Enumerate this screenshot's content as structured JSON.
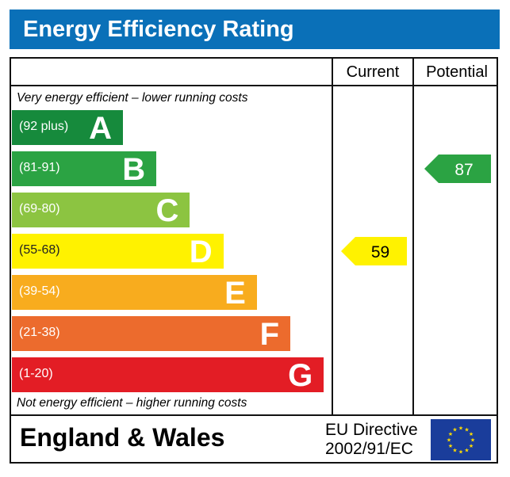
{
  "chart_data": {
    "type": "bar",
    "title": "Energy Efficiency Rating",
    "columns": [
      "Current",
      "Potential"
    ],
    "top_note": "Very energy efficient – lower running costs",
    "bottom_note": "Not energy efficient – higher running costs",
    "bands": [
      {
        "letter": "A",
        "range": "(92 plus)",
        "color": "#168a3c"
      },
      {
        "letter": "B",
        "range": "(81-91)",
        "color": "#2ba343"
      },
      {
        "letter": "C",
        "range": "(69-80)",
        "color": "#8cc441"
      },
      {
        "letter": "D",
        "range": "(55-68)",
        "color": "#fff200"
      },
      {
        "letter": "E",
        "range": "(39-54)",
        "color": "#f8ac1e"
      },
      {
        "letter": "F",
        "range": "(21-38)",
        "color": "#ec6b2d"
      },
      {
        "letter": "G",
        "range": "(1-20)",
        "color": "#e31d25"
      }
    ],
    "current": {
      "value": "59",
      "band": "D",
      "color": "#fff200"
    },
    "potential": {
      "value": "87",
      "band": "B",
      "color": "#2ba343"
    },
    "footer": {
      "region": "England & Wales",
      "directive_line1": "EU Directive",
      "directive_line2": "2002/91/EC"
    },
    "header_color": "#0a70b8"
  }
}
